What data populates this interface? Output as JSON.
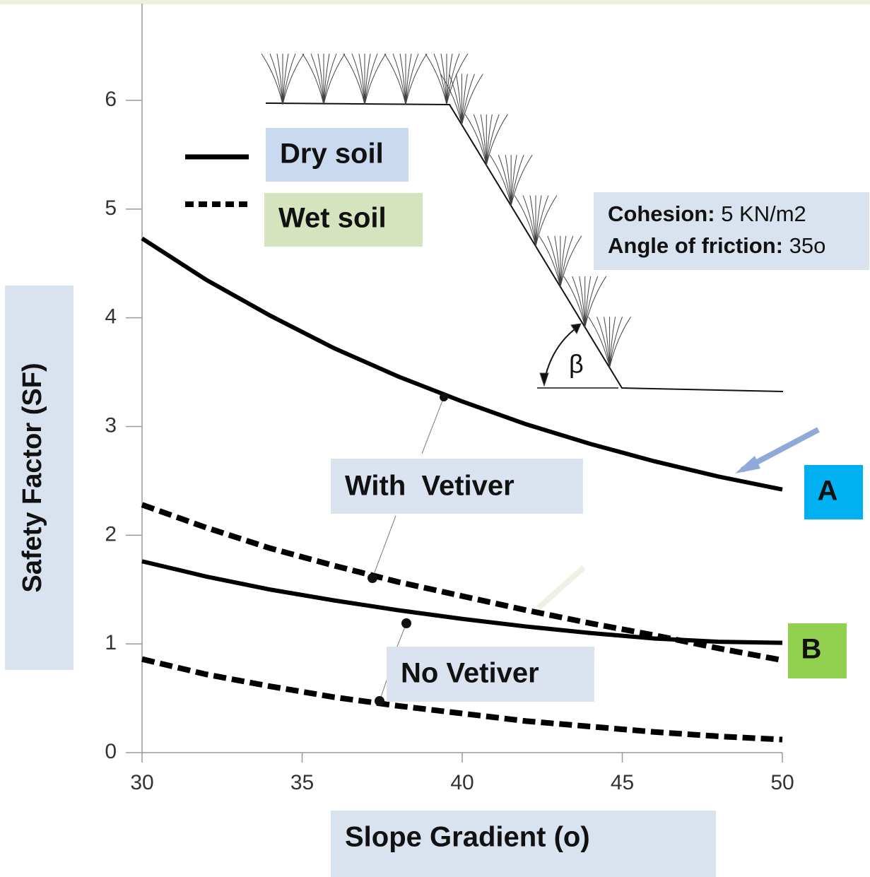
{
  "chart_data": {
    "type": "line",
    "x_label": "Slope Gradient (o)",
    "y_label": "Safety Factor (SF)",
    "x": [
      30,
      32,
      34,
      36,
      38,
      40,
      42,
      44,
      46,
      48,
      50
    ],
    "series": [
      {
        "color": "#000000",
        "dashed": false,
        "values": [
          4.73,
          4.35,
          4.02,
          3.72,
          3.46,
          3.23,
          3.02,
          2.84,
          2.68,
          2.54,
          2.42
        ]
      },
      {
        "color": "#000000",
        "dashed": true,
        "values": [
          2.28,
          2.07,
          1.88,
          1.72,
          1.57,
          1.44,
          1.31,
          1.19,
          1.08,
          0.96,
          0.85
        ]
      },
      {
        "color": "#000000",
        "dashed": false,
        "values": [
          1.76,
          1.62,
          1.5,
          1.4,
          1.31,
          1.23,
          1.16,
          1.1,
          1.05,
          1.02,
          1.01
        ]
      },
      {
        "color": "#000000",
        "dashed": true,
        "values": [
          0.86,
          0.72,
          0.61,
          0.51,
          0.43,
          0.36,
          0.29,
          0.24,
          0.19,
          0.15,
          0.12
        ]
      }
    ],
    "legend": [
      {
        "label": "Dry soil",
        "dashed": false
      },
      {
        "label": "Wet soil",
        "dashed": true
      }
    ],
    "annotations": {
      "with_vetiver": "With  Vetiver",
      "no_vetiver": "No Vetiver",
      "a": "A",
      "b": "B",
      "cohesion_label": "Cohesion:",
      "cohesion_value": "5 KN/m2",
      "friction_label": "Angle of friction:",
      "friction_value": "35o",
      "angle": "β"
    },
    "xlim": [
      30,
      50
    ],
    "ylim": [
      0,
      6
    ],
    "xticks": [
      30,
      35,
      40,
      45,
      50
    ],
    "yticks": [
      0,
      1,
      2,
      3,
      4,
      5,
      6
    ]
  }
}
